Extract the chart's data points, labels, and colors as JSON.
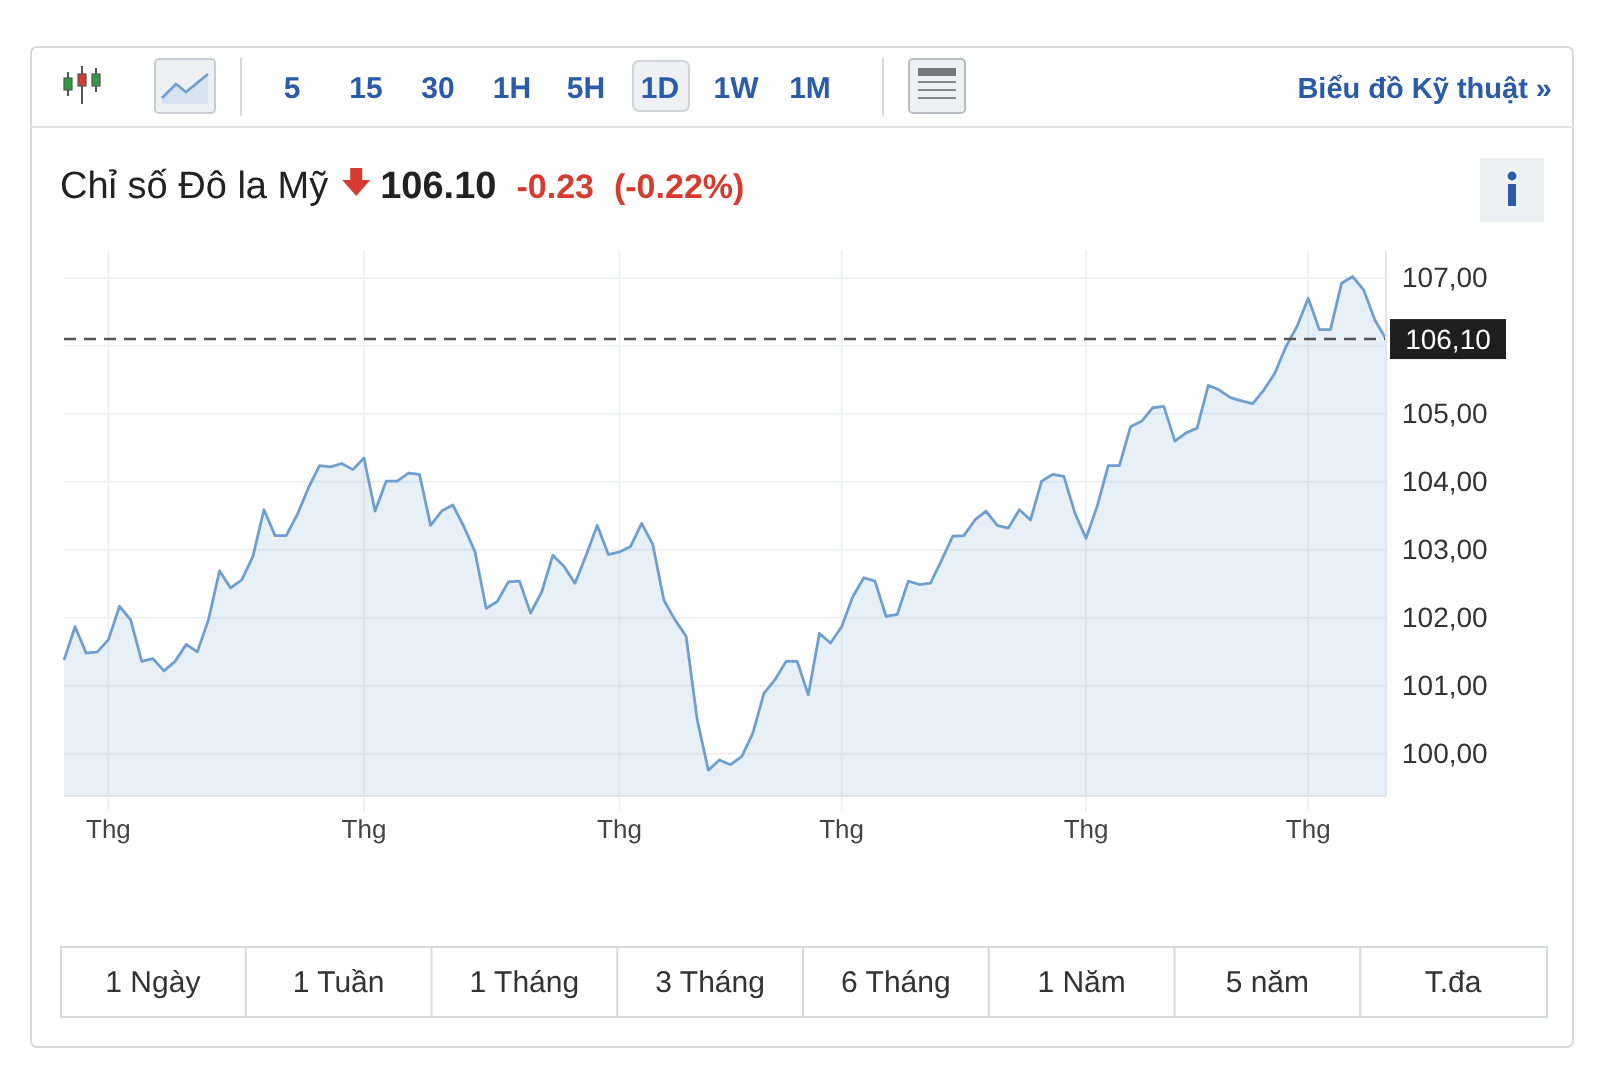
{
  "chart_data": {
    "type": "area",
    "title": "Chỉ số Đô la Mỹ",
    "annotations": [
      "106.10",
      "-0.23",
      "(-0.22%)",
      "5",
      "15",
      "30",
      "1H",
      "5H",
      "1D",
      "1W",
      "1M",
      "Biểu đồ Kỹ thuật »",
      "1 Ngày",
      "1 Tuần",
      "1 Tháng",
      "3 Tháng",
      "6 Tháng",
      "1 Năm",
      "5 năm",
      "T.đa"
    ],
    "categories": [
      null,
      null,
      null,
      null,
      "Thg",
      null,
      null,
      null,
      null,
      null,
      null,
      null,
      null,
      null,
      null,
      null,
      null,
      null,
      null,
      null,
      null,
      null,
      null,
      null,
      null,
      null,
      null,
      "Thg",
      null,
      null,
      null,
      null,
      null,
      null,
      null,
      null,
      null,
      null,
      null,
      null,
      null,
      null,
      null,
      null,
      null,
      null,
      null,
      null,
      null,
      null,
      "Thg",
      null,
      null,
      null,
      null,
      null,
      null,
      null,
      null,
      null,
      null,
      null,
      null,
      null,
      null,
      null,
      null,
      null,
      null,
      null,
      "Thg",
      null,
      null,
      null,
      null,
      null,
      null,
      null,
      null,
      null,
      null,
      null,
      null,
      null,
      null,
      null,
      null,
      null,
      null,
      null,
      null,
      null,
      "Thg",
      null,
      null,
      null,
      null,
      null,
      null,
      null,
      null,
      null,
      null,
      null,
      null,
      null,
      null,
      null,
      null,
      null,
      null,
      null,
      "Thg",
      null,
      null,
      null,
      null,
      null,
      null,
      null
    ],
    "series": [
      {
        "color": "#6f9fd0",
        "values": [
          101.38,
          101.87,
          101.48,
          101.5,
          101.68,
          102.17,
          101.97,
          101.36,
          101.4,
          101.22,
          101.36,
          101.61,
          101.5,
          101.97,
          102.69,
          102.44,
          102.56,
          102.9,
          103.59,
          103.21,
          103.21,
          103.52,
          103.91,
          104.24,
          104.22,
          104.27,
          104.18,
          104.35,
          103.57,
          104.01,
          104.01,
          104.13,
          104.11,
          103.36,
          103.57,
          103.66,
          103.34,
          102.97,
          102.14,
          102.24,
          102.53,
          102.54,
          102.07,
          102.38,
          102.92,
          102.76,
          102.51,
          102.92,
          103.36,
          102.93,
          102.97,
          103.05,
          103.39,
          103.08,
          102.26,
          101.97,
          101.73,
          100.5,
          99.76,
          99.91,
          99.84,
          99.96,
          100.3,
          100.89,
          101.09,
          101.36,
          101.36,
          100.87,
          101.77,
          101.63,
          101.87,
          102.31,
          102.59,
          102.54,
          102.02,
          102.05,
          102.54,
          102.49,
          102.51,
          102.85,
          103.2,
          103.21,
          103.44,
          103.57,
          103.36,
          103.32,
          103.59,
          103.44,
          104.01,
          104.11,
          104.08,
          103.54,
          103.17,
          103.64,
          104.24,
          104.24,
          104.81,
          104.89,
          105.09,
          105.11,
          104.6,
          104.72,
          104.79,
          105.42,
          105.35,
          105.24,
          105.19,
          105.15,
          105.35,
          105.6,
          105.99,
          106.29,
          106.7,
          106.24,
          106.24,
          106.92,
          107.02,
          106.82,
          106.38,
          106.1
        ]
      }
    ],
    "ylim": [
      99.38,
      107.41
    ],
    "yticks": [
      {
        "value": 100,
        "label": "100,00"
      },
      {
        "value": 101,
        "label": "101,00"
      },
      {
        "value": 102,
        "label": "102,00"
      },
      {
        "value": 103,
        "label": "103,00"
      },
      {
        "value": 104,
        "label": "104,00"
      },
      {
        "value": 105,
        "label": "105,00"
      },
      {
        "value": 106,
        "label": null
      },
      {
        "value": 107,
        "label": "107,00"
      }
    ],
    "ref_lines": [
      {
        "axis": "y",
        "value": 106.1,
        "label": "106,10",
        "color": "#555555",
        "line_style": "dashed"
      }
    ],
    "grid": true
  }
}
